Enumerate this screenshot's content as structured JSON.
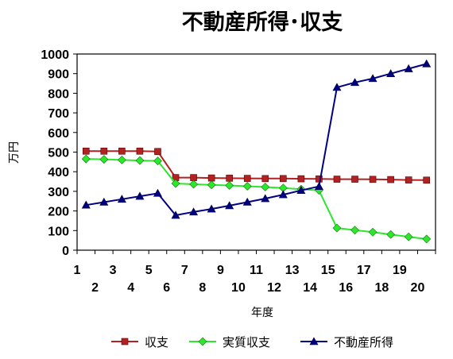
{
  "chart_data": {
    "type": "line",
    "title": "不動産所得･収支",
    "xlabel": "年度",
    "ylabel": "万円",
    "x": [
      1,
      2,
      3,
      4,
      5,
      6,
      7,
      8,
      9,
      10,
      11,
      12,
      13,
      14,
      15,
      16,
      17,
      18,
      19,
      20
    ],
    "ylim": [
      0,
      1000
    ],
    "yticks": [
      0,
      100,
      200,
      300,
      400,
      500,
      600,
      700,
      800,
      900,
      1000
    ],
    "grid": false,
    "legend_position": "bottom",
    "series": [
      {
        "name": "収支",
        "color": "#b22222",
        "marker": "square",
        "values": [
          505,
          505,
          505,
          505,
          503,
          370,
          370,
          368,
          367,
          366,
          365,
          365,
          364,
          363,
          362,
          362,
          361,
          360,
          358,
          357
        ]
      },
      {
        "name": "実質収支",
        "color": "#2ee62e",
        "marker": "diamond",
        "values": [
          465,
          463,
          460,
          457,
          455,
          340,
          336,
          333,
          330,
          326,
          322,
          317,
          311,
          305,
          113,
          102,
          92,
          80,
          68,
          57
        ]
      },
      {
        "name": "不動産所得",
        "color": "#000080",
        "marker": "triangle",
        "values": [
          230,
          245,
          260,
          275,
          290,
          178,
          195,
          210,
          227,
          245,
          263,
          283,
          305,
          325,
          830,
          855,
          875,
          900,
          925,
          950
        ]
      }
    ]
  }
}
